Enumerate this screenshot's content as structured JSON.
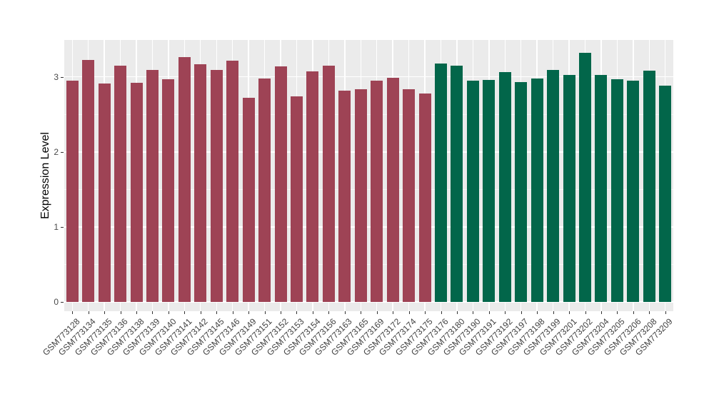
{
  "figure": {
    "background": "#FFFFFF",
    "panel_background": "#EBEBEB",
    "grid_color": "#FFFFFF",
    "tick_color": "#333333",
    "tick_label_color": "#404040",
    "axis_title_color": "#000000"
  },
  "chart_data": {
    "type": "bar",
    "title": "",
    "xlabel": "",
    "ylabel": "Expression Level",
    "ylim": [
      -0.12,
      3.49
    ],
    "yticks": [
      0,
      1,
      2,
      3
    ],
    "yticks_minor": [
      0.5,
      1.5,
      2.5
    ],
    "grid": true,
    "legend_position": "none",
    "categories": [
      "GSM773128",
      "GSM773134",
      "GSM773135",
      "GSM773136",
      "GSM773138",
      "GSM773139",
      "GSM773140",
      "GSM773141",
      "GSM773142",
      "GSM773145",
      "GSM773146",
      "GSM773149",
      "GSM773151",
      "GSM773152",
      "GSM773153",
      "GSM773154",
      "GSM773156",
      "GSM773163",
      "GSM773165",
      "GSM773169",
      "GSM773172",
      "GSM773174",
      "GSM773175",
      "GSM773176",
      "GSM773180",
      "GSM773190",
      "GSM773191",
      "GSM773192",
      "GSM773197",
      "GSM773198",
      "GSM773199",
      "GSM773201",
      "GSM773202",
      "GSM773204",
      "GSM773205",
      "GSM773206",
      "GSM773208",
      "GSM773209"
    ],
    "values": [
      2.95,
      3.23,
      2.91,
      3.15,
      2.92,
      3.09,
      2.97,
      3.26,
      3.17,
      3.09,
      3.22,
      2.72,
      2.98,
      3.14,
      2.74,
      3.07,
      3.15,
      2.82,
      2.84,
      2.95,
      2.99,
      2.84,
      2.78,
      3.18,
      3.15,
      2.95,
      2.96,
      3.06,
      2.93,
      2.98,
      3.09,
      3.03,
      3.32,
      3.03,
      2.97,
      2.95,
      3.08,
      2.88
    ],
    "groups": [
      "group1",
      "group1",
      "group1",
      "group1",
      "group1",
      "group1",
      "group1",
      "group1",
      "group1",
      "group1",
      "group1",
      "group1",
      "group1",
      "group1",
      "group1",
      "group1",
      "group1",
      "group1",
      "group1",
      "group1",
      "group1",
      "group1",
      "group1",
      "group2",
      "group2",
      "group2",
      "group2",
      "group2",
      "group2",
      "group2",
      "group2",
      "group2",
      "group2",
      "group2",
      "group2",
      "group2",
      "group2",
      "group2"
    ],
    "group_colors": {
      "group1": "#9E4355",
      "group2": "#02664A"
    }
  }
}
